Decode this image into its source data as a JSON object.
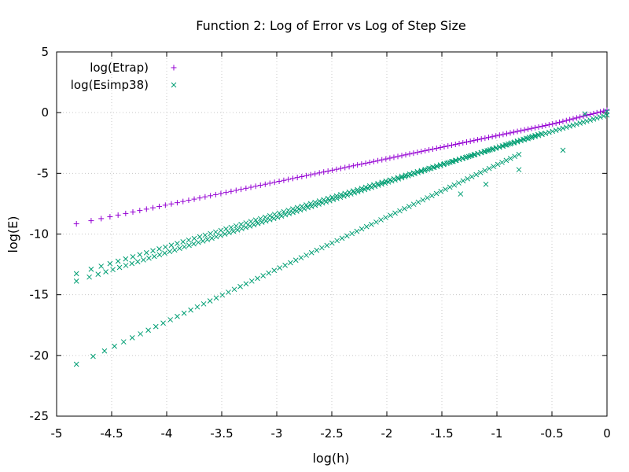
{
  "chart_data": {
    "type": "scatter",
    "title": "Function 2: Log of Error vs Log of Step Size",
    "xlabel": "log(h)",
    "ylabel": "log(E)",
    "xlim": [
      -5,
      0
    ],
    "ylim": [
      -25,
      5
    ],
    "xticks": [
      "-5",
      "-4.5",
      "-4",
      "-3.5",
      "-3",
      "-2.5",
      "-2",
      "-1.5",
      "-1",
      "-0.5",
      "0"
    ],
    "yticks": [
      "5",
      "0",
      "-5",
      "-10",
      "-15",
      "-20",
      "-25"
    ],
    "grid": true,
    "legend_position": "top-left",
    "series": [
      {
        "name": "log(Etrap)",
        "marker": "plus",
        "color": "#9400d3",
        "note_trend": "linear, slope ~2",
        "x_range": [
          -4.82,
          0
        ],
        "fit": {
          "slope": 1.9,
          "intercept": 0.0
        },
        "point_count": 120
      },
      {
        "name": "log(Esimp38)",
        "marker": "x",
        "color": "#009e73",
        "sub_series": [
          {
            "x_range": [
              -4.82,
              0
            ],
            "fit": {
              "slope": 2.71,
              "intercept": -0.2
            },
            "point_count": 120
          },
          {
            "x_range": [
              -4.82,
              -0.6
            ],
            "fit": {
              "slope": 2.88,
              "intercept": 0.0
            },
            "point_count": 120
          },
          {
            "x_range": [
              -4.82,
              -0.8
            ],
            "fit": {
              "slope": 4.3,
              "intercept": 0.0
            },
            "point_count": 80
          }
        ],
        "outliers": [
          {
            "x": -0.2,
            "y": -0.1
          },
          {
            "x": -0.4,
            "y": -3.1
          },
          {
            "x": -1.1,
            "y": -5.9
          },
          {
            "x": -1.33,
            "y": -6.7
          },
          {
            "x": -0.8,
            "y": -4.7
          },
          {
            "x": 0,
            "y": 0.1
          }
        ]
      }
    ]
  }
}
